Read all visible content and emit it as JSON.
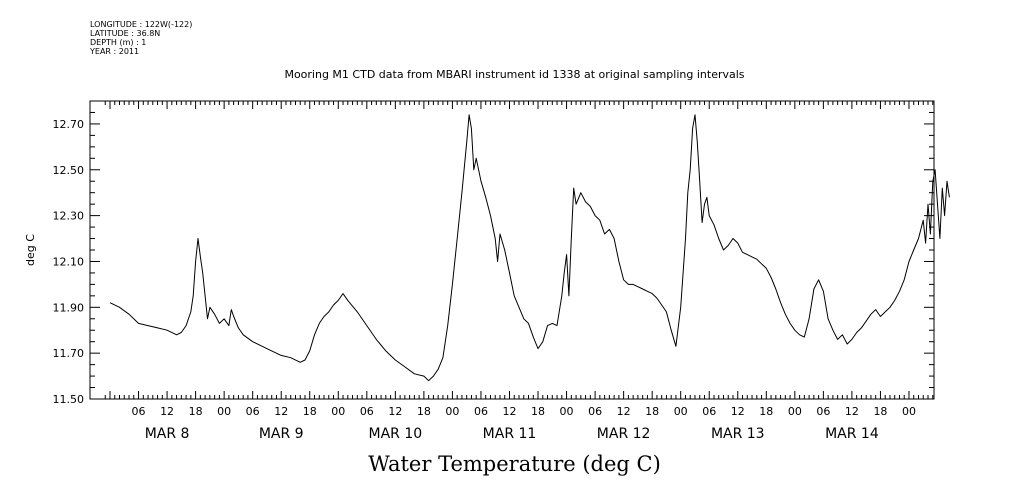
{
  "meta": {
    "longitude": "LONGITUDE : 122W(-122)",
    "latitude": "LATITUDE : 36.8N",
    "depth": "DEPTH (m) : 1",
    "year": "YEAR : 2011"
  },
  "chart_data": {
    "type": "line",
    "title": "Mooring M1 CTD data from MBARI instrument id 1338 at original sampling intervals",
    "xlabel": "Water Temperature (deg C)",
    "ylabel": "deg C",
    "ylim": [
      11.5,
      12.8
    ],
    "yticks": [
      "11.50",
      "11.70",
      "11.90",
      "12.10",
      "12.30",
      "12.50",
      "12.70"
    ],
    "xlim_hours": [
      0,
      172
    ],
    "hour_ticks": [
      "06",
      "12",
      "18",
      "00",
      "06",
      "12",
      "18",
      "00",
      "06",
      "12",
      "18",
      "00",
      "06",
      "12",
      "18",
      "00",
      "06",
      "12",
      "18",
      "00",
      "06",
      "12",
      "18",
      "00",
      "06",
      "12",
      "18",
      "00"
    ],
    "day_labels": [
      "MAR  8",
      "MAR  9",
      "MAR 10",
      "MAR 11",
      "MAR 12",
      "MAR 13",
      "MAR 14"
    ],
    "grid": false,
    "series": [
      {
        "color": "#000000",
        "points": [
          [
            0,
            11.92
          ],
          [
            2,
            11.9
          ],
          [
            4,
            11.87
          ],
          [
            6,
            11.83
          ],
          [
            8,
            11.82
          ],
          [
            10,
            11.81
          ],
          [
            12,
            11.8
          ],
          [
            14,
            11.78
          ],
          [
            15,
            11.79
          ],
          [
            16,
            11.82
          ],
          [
            17,
            11.88
          ],
          [
            17.5,
            11.95
          ],
          [
            18,
            12.1
          ],
          [
            18.5,
            12.2
          ],
          [
            19,
            12.12
          ],
          [
            19.5,
            12.05
          ],
          [
            20,
            11.95
          ],
          [
            20.5,
            11.85
          ],
          [
            21,
            11.9
          ],
          [
            22,
            11.87
          ],
          [
            23,
            11.83
          ],
          [
            24,
            11.85
          ],
          [
            25,
            11.82
          ],
          [
            25.5,
            11.89
          ],
          [
            26,
            11.86
          ],
          [
            27,
            11.81
          ],
          [
            28,
            11.78
          ],
          [
            30,
            11.75
          ],
          [
            32,
            11.73
          ],
          [
            34,
            11.71
          ],
          [
            36,
            11.69
          ],
          [
            38,
            11.68
          ],
          [
            40,
            11.66
          ],
          [
            41,
            11.67
          ],
          [
            42,
            11.71
          ],
          [
            43,
            11.78
          ],
          [
            44,
            11.83
          ],
          [
            45,
            11.86
          ],
          [
            46,
            11.88
          ],
          [
            47,
            11.91
          ],
          [
            48,
            11.93
          ],
          [
            49,
            11.96
          ],
          [
            50,
            11.93
          ],
          [
            52,
            11.88
          ],
          [
            54,
            11.82
          ],
          [
            56,
            11.76
          ],
          [
            58,
            11.71
          ],
          [
            60,
            11.67
          ],
          [
            62,
            11.64
          ],
          [
            64,
            11.61
          ],
          [
            66,
            11.6
          ],
          [
            67,
            11.58
          ],
          [
            68,
            11.6
          ],
          [
            69,
            11.63
          ],
          [
            70,
            11.68
          ],
          [
            71,
            11.82
          ],
          [
            72,
            12.0
          ],
          [
            73,
            12.2
          ],
          [
            74,
            12.4
          ],
          [
            75,
            12.62
          ],
          [
            75.5,
            12.74
          ],
          [
            76,
            12.68
          ],
          [
            76.5,
            12.5
          ],
          [
            77,
            12.55
          ],
          [
            78,
            12.45
          ],
          [
            79,
            12.38
          ],
          [
            80,
            12.3
          ],
          [
            81,
            12.2
          ],
          [
            81.5,
            12.1
          ],
          [
            82,
            12.22
          ],
          [
            83,
            12.15
          ],
          [
            84,
            12.05
          ],
          [
            85,
            11.95
          ],
          [
            86,
            11.9
          ],
          [
            87,
            11.85
          ],
          [
            88,
            11.83
          ],
          [
            89,
            11.77
          ],
          [
            90,
            11.72
          ],
          [
            91,
            11.75
          ],
          [
            92,
            11.82
          ],
          [
            93,
            11.83
          ],
          [
            94,
            11.82
          ],
          [
            95,
            11.95
          ],
          [
            95.5,
            12.05
          ],
          [
            96,
            12.13
          ],
          [
            96.5,
            11.95
          ],
          [
            97,
            12.2
          ],
          [
            97.5,
            12.42
          ],
          [
            98,
            12.35
          ],
          [
            99,
            12.4
          ],
          [
            100,
            12.36
          ],
          [
            101,
            12.34
          ],
          [
            102,
            12.3
          ],
          [
            103,
            12.28
          ],
          [
            104,
            12.22
          ],
          [
            105,
            12.24
          ],
          [
            106,
            12.2
          ],
          [
            107,
            12.1
          ],
          [
            108,
            12.02
          ],
          [
            109,
            12.0
          ],
          [
            110,
            12.0
          ],
          [
            111,
            11.99
          ],
          [
            112,
            11.98
          ],
          [
            113,
            11.97
          ],
          [
            114,
            11.96
          ],
          [
            115,
            11.94
          ],
          [
            116,
            11.91
          ],
          [
            117,
            11.88
          ],
          [
            118,
            11.8
          ],
          [
            119,
            11.73
          ],
          [
            120,
            11.9
          ],
          [
            121,
            12.2
          ],
          [
            121.5,
            12.4
          ],
          [
            122,
            12.5
          ],
          [
            122.5,
            12.68
          ],
          [
            123,
            12.74
          ],
          [
            123.5,
            12.62
          ],
          [
            124,
            12.45
          ],
          [
            124.5,
            12.27
          ],
          [
            125,
            12.35
          ],
          [
            125.5,
            12.38
          ],
          [
            126,
            12.3
          ],
          [
            127,
            12.26
          ],
          [
            128,
            12.2
          ],
          [
            129,
            12.15
          ],
          [
            130,
            12.17
          ],
          [
            131,
            12.2
          ],
          [
            132,
            12.18
          ],
          [
            133,
            12.14
          ],
          [
            134,
            12.13
          ],
          [
            135,
            12.12
          ],
          [
            136,
            12.11
          ],
          [
            137,
            12.09
          ],
          [
            138,
            12.07
          ],
          [
            139,
            12.03
          ],
          [
            140,
            11.98
          ],
          [
            141,
            11.92
          ],
          [
            142,
            11.87
          ],
          [
            143,
            11.83
          ],
          [
            144,
            11.8
          ],
          [
            145,
            11.78
          ],
          [
            146,
            11.77
          ],
          [
            147,
            11.85
          ],
          [
            148,
            11.98
          ],
          [
            149,
            12.02
          ],
          [
            150,
            11.97
          ],
          [
            151,
            11.85
          ],
          [
            152,
            11.8
          ],
          [
            153,
            11.76
          ],
          [
            154,
            11.78
          ],
          [
            155,
            11.74
          ],
          [
            156,
            11.76
          ],
          [
            157,
            11.79
          ],
          [
            158,
            11.81
          ],
          [
            159,
            11.84
          ],
          [
            160,
            11.87
          ],
          [
            161,
            11.89
          ],
          [
            162,
            11.86
          ],
          [
            163,
            11.88
          ],
          [
            164,
            11.9
          ],
          [
            165,
            11.93
          ],
          [
            166,
            11.97
          ],
          [
            167,
            12.02
          ],
          [
            168,
            12.1
          ],
          [
            169,
            12.15
          ],
          [
            170,
            12.2
          ],
          [
            171,
            12.28
          ],
          [
            171.5,
            12.18
          ],
          [
            172,
            12.35
          ],
          [
            172.5,
            12.22
          ],
          [
            173,
            12.45
          ],
          [
            173.5,
            12.5
          ],
          [
            174,
            12.35
          ],
          [
            174.5,
            12.2
          ],
          [
            175,
            12.42
          ],
          [
            175.5,
            12.3
          ],
          [
            176,
            12.45
          ],
          [
            176.5,
            12.38
          ]
        ]
      }
    ]
  }
}
